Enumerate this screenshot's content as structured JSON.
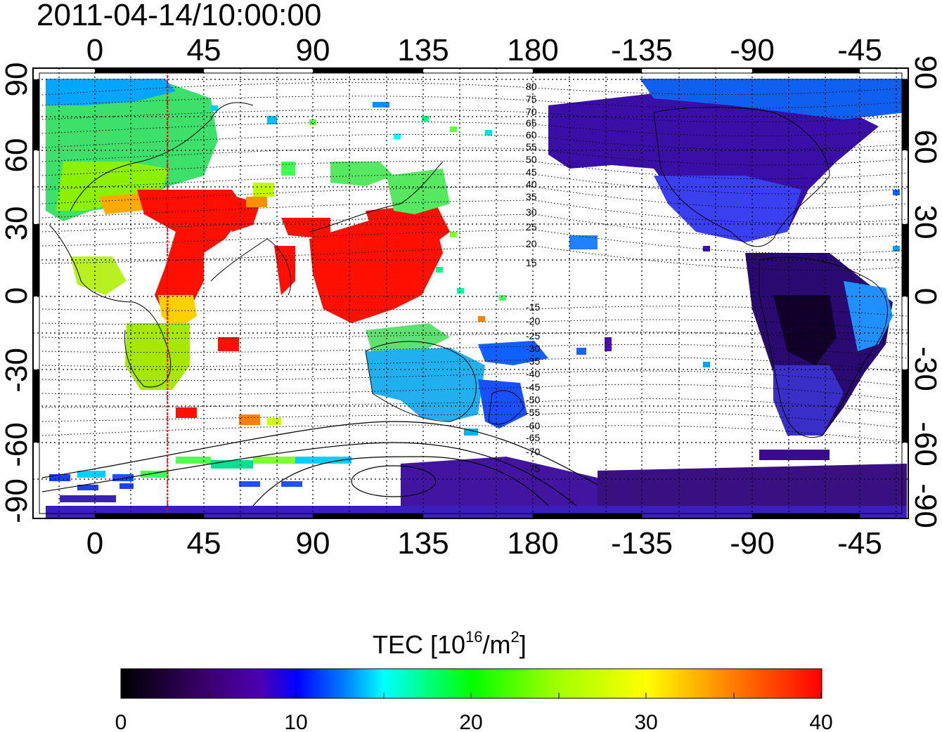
{
  "title": "2011-04-14/10:00:00",
  "lon_ticks": [
    "0",
    "45",
    "90",
    "135",
    "180",
    "-135",
    "-90",
    "-45"
  ],
  "lat_ticks": [
    "90",
    "60",
    "30",
    "0",
    "-30",
    "-60",
    "-90"
  ],
  "contour_labels": [
    "80",
    "75",
    "70",
    "65",
    "60",
    "55",
    "50",
    "45",
    "40",
    "35",
    "30",
    "25",
    "20",
    "15",
    "-15",
    "-20",
    "-25",
    "-30",
    "-35",
    "-40",
    "-45",
    "-50",
    "-55",
    "-60",
    "-65",
    "-70",
    "-75"
  ],
  "colorbar": {
    "label_main": "TEC  [10",
    "label_exp": "16",
    "label_unit": "/m",
    "label_exp2": "2",
    "label_close": "]",
    "ticks": [
      "0",
      "10",
      "20",
      "30",
      "40"
    ],
    "min": 0,
    "max": 40
  },
  "marker": {
    "lon": 30,
    "color": "#ff0000"
  },
  "palette": [
    "#000000",
    "#3a006a",
    "#5a0ab8",
    "#0000ff",
    "#00a0ff",
    "#00ffff",
    "#00ff40",
    "#a0ff00",
    "#ffff00",
    "#ff8000",
    "#ff0000"
  ]
}
